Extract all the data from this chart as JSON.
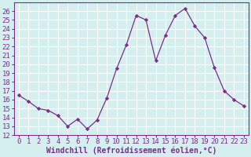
{
  "x": [
    0,
    1,
    2,
    3,
    4,
    5,
    6,
    7,
    8,
    9,
    10,
    11,
    12,
    13,
    14,
    15,
    16,
    17,
    18,
    19,
    20,
    21,
    22,
    23
  ],
  "y": [
    16.5,
    15.8,
    15.0,
    14.8,
    14.2,
    13.0,
    13.8,
    12.7,
    13.7,
    16.2,
    19.5,
    22.2,
    25.5,
    25.0,
    20.4,
    23.3,
    25.5,
    26.3,
    24.3,
    23.0,
    19.6,
    17.0,
    16.0,
    15.3
  ],
  "line_color": "#7b2d8b",
  "marker": "D",
  "marker_size": 2.2,
  "bg_color": "#d5efef",
  "grid_color": "#ffffff",
  "xlabel": "Windchill (Refroidissement éolien,°C)",
  "xlabel_fontsize": 7,
  "tick_fontsize": 6.5,
  "ylim": [
    12,
    27
  ],
  "xlim": [
    -0.5,
    23.5
  ],
  "yticks": [
    12,
    13,
    14,
    15,
    16,
    17,
    18,
    19,
    20,
    21,
    22,
    23,
    24,
    25,
    26
  ],
  "xticks": [
    0,
    1,
    2,
    3,
    4,
    5,
    6,
    7,
    8,
    9,
    10,
    11,
    12,
    13,
    14,
    15,
    16,
    17,
    18,
    19,
    20,
    21,
    22,
    23
  ]
}
